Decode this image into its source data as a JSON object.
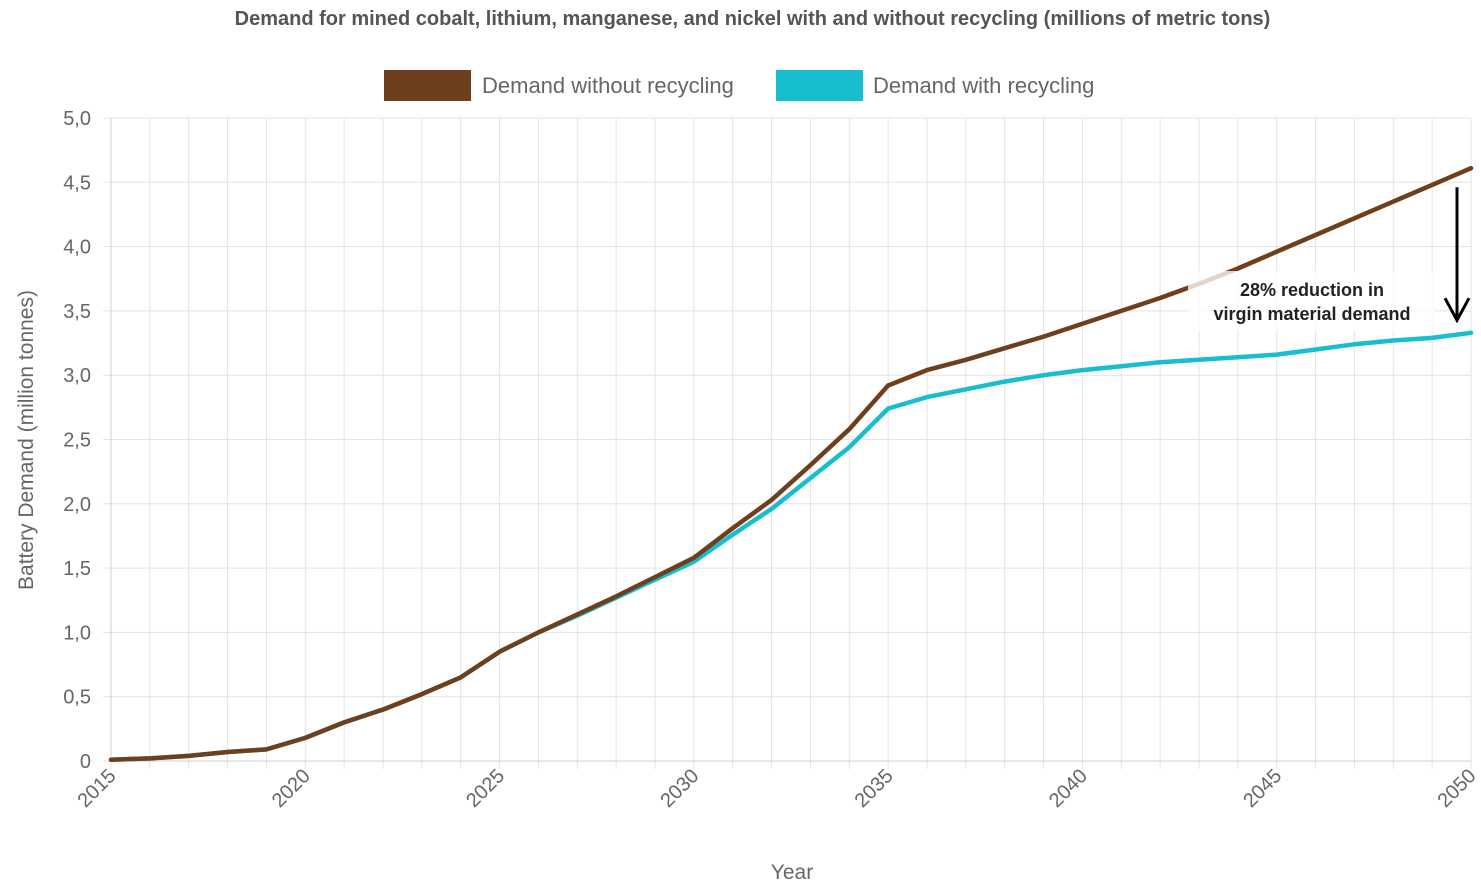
{
  "chart_data": {
    "type": "line",
    "title": "Demand for mined cobalt, lithium, manganese, and nickel with and without recycling (millions of metric tons)",
    "xlabel": "Year",
    "ylabel": "Battery Demand (million tonnes)",
    "xlim": [
      2015,
      2050
    ],
    "ylim": [
      0,
      5
    ],
    "x_ticks": [
      "2015",
      "2020",
      "2025",
      "2030",
      "2035",
      "2040",
      "2045",
      "2050"
    ],
    "y_ticks": [
      "0",
      "0,5",
      "1,0",
      "1,5",
      "2,0",
      "2,5",
      "3,0",
      "3,5",
      "4,0",
      "4,5",
      "5,0"
    ],
    "grid": true,
    "legend_position": "top-center",
    "x": [
      2015,
      2016,
      2017,
      2018,
      2019,
      2020,
      2021,
      2022,
      2023,
      2024,
      2025,
      2026,
      2027,
      2028,
      2029,
      2030,
      2031,
      2032,
      2033,
      2034,
      2035,
      2036,
      2037,
      2038,
      2039,
      2040,
      2041,
      2042,
      2043,
      2044,
      2045,
      2046,
      2047,
      2048,
      2049,
      2050
    ],
    "series": [
      {
        "name": "Demand without recycling",
        "color": "#6e3f1c",
        "values": [
          0.01,
          0.02,
          0.04,
          0.07,
          0.09,
          0.18,
          0.3,
          0.4,
          0.52,
          0.65,
          0.85,
          1.0,
          1.14,
          1.28,
          1.43,
          1.58,
          1.81,
          2.03,
          2.3,
          2.58,
          2.92,
          3.04,
          3.12,
          3.21,
          3.3,
          3.4,
          3.5,
          3.6,
          3.71,
          3.83,
          3.96,
          4.09,
          4.22,
          4.35,
          4.48,
          4.61
        ]
      },
      {
        "name": "Demand with recycling",
        "color": "#17becf",
        "values": [
          0.01,
          0.02,
          0.04,
          0.07,
          0.09,
          0.18,
          0.3,
          0.4,
          0.52,
          0.65,
          0.85,
          1.0,
          1.13,
          1.27,
          1.41,
          1.55,
          1.76,
          1.96,
          2.2,
          2.44,
          2.74,
          2.83,
          2.89,
          2.95,
          3.0,
          3.04,
          3.07,
          3.1,
          3.12,
          3.14,
          3.16,
          3.2,
          3.24,
          3.27,
          3.29,
          3.33
        ]
      }
    ],
    "annotation": {
      "lines": [
        "28% reduction in",
        "virgin material demand"
      ],
      "arrow_year": 2050,
      "arrow_from": 4.5,
      "arrow_to": 3.35
    }
  }
}
